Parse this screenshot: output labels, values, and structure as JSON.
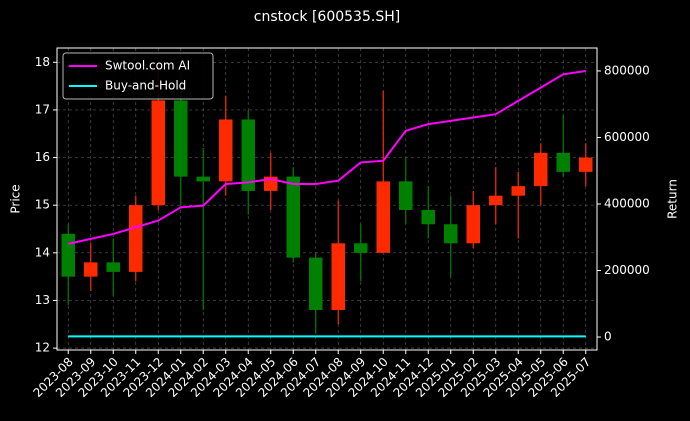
{
  "chart_data": {
    "type": "candlestick",
    "title": "cnstock [600535.SH]",
    "ylabel": "Price",
    "y2label": "Return",
    "x": [
      "2023-08",
      "2023-09",
      "2023-10",
      "2023-11",
      "2023-12",
      "2024-01",
      "2024-02",
      "2024-03",
      "2024-04",
      "2024-05",
      "2024-06",
      "2024-07",
      "2024-08",
      "2024-09",
      "2024-10",
      "2024-11",
      "2024-12",
      "2025-01",
      "2025-02",
      "2025-03",
      "2025-04",
      "2025-05",
      "2025-06",
      "2025-07"
    ],
    "open": [
      14.4,
      13.5,
      13.8,
      13.6,
      15.0,
      17.2,
      15.6,
      15.5,
      16.8,
      15.3,
      15.6,
      13.9,
      12.8,
      14.2,
      14.0,
      15.5,
      14.9,
      14.6,
      14.2,
      15.0,
      15.2,
      15.4,
      16.1,
      15.7
    ],
    "high": [
      14.6,
      14.2,
      14.3,
      15.2,
      17.9,
      17.8,
      16.2,
      17.3,
      17.0,
      16.1,
      15.8,
      14.0,
      15.1,
      14.6,
      17.4,
      16.0,
      15.4,
      15.2,
      15.3,
      15.8,
      15.7,
      16.3,
      16.9,
      16.3
    ],
    "low": [
      12.9,
      13.2,
      13.1,
      13.4,
      14.9,
      15.0,
      12.8,
      15.2,
      14.8,
      14.9,
      13.8,
      12.3,
      12.5,
      13.4,
      14.0,
      14.6,
      14.3,
      13.5,
      14.1,
      14.6,
      14.3,
      15.0,
      15.6,
      15.4
    ],
    "close": [
      13.5,
      13.8,
      13.6,
      15.0,
      17.2,
      15.6,
      15.5,
      16.8,
      15.3,
      15.6,
      13.9,
      12.8,
      14.2,
      14.0,
      15.5,
      14.9,
      14.6,
      14.2,
      15.0,
      15.2,
      15.4,
      16.1,
      15.7,
      16.0
    ],
    "up_color": "#ff2a00",
    "down_color": "#008000",
    "series": [
      {
        "name": "Swtool.com AI",
        "color": "#ff00ff",
        "axis": "y2",
        "values": [
          280000,
          295000,
          310000,
          330000,
          350000,
          390000,
          395000,
          460000,
          465000,
          475000,
          460000,
          460000,
          470000,
          525000,
          530000,
          620000,
          640000,
          650000,
          660000,
          670000,
          710000,
          750000,
          790000,
          800000
        ]
      },
      {
        "name": "Buy-and-Hold",
        "color": "#00ffff",
        "axis": "y2",
        "values": [
          2000,
          2000,
          2000,
          2000,
          2000,
          2000,
          2000,
          2000,
          2000,
          2000,
          2000,
          2000,
          2000,
          2000,
          2000,
          2000,
          2000,
          2000,
          2000,
          2000,
          2000,
          2000,
          2000,
          2000
        ]
      }
    ],
    "ylim": [
      11.96,
      18.3
    ],
    "yticks": [
      12,
      13,
      14,
      15,
      16,
      17,
      18
    ],
    "y2lim": [
      -39000,
      869000
    ],
    "y2ticks": [
      0,
      200000,
      400000,
      600000,
      800000
    ],
    "grid": true,
    "legend": "upper left"
  }
}
